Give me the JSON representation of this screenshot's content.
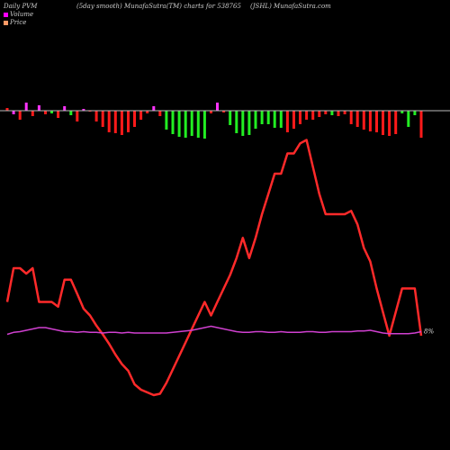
{
  "header": {
    "left": "Daily PVM",
    "middle": "(5day smooth) MunafaSutra(TM) charts for 538765",
    "right": "(JSHL) MunafaSutra.com"
  },
  "legend": [
    {
      "label": "Volume",
      "color": "#ff00ff"
    },
    {
      "label": "Price",
      "color": "#ff9a66"
    }
  ],
  "chart_data": {
    "type": "line",
    "x": [
      1,
      2,
      3,
      4,
      5,
      6,
      7,
      8,
      9,
      10,
      11,
      12,
      13,
      14,
      15,
      16,
      17,
      18,
      19,
      20,
      21,
      22,
      23,
      24,
      25,
      26,
      27,
      28,
      29,
      30,
      31,
      32,
      33,
      34,
      35,
      36,
      37,
      38,
      39,
      40,
      41,
      42,
      43,
      44,
      45,
      46,
      47,
      48,
      49,
      50,
      51,
      52,
      53,
      54,
      55,
      56,
      57,
      58,
      59,
      60,
      61,
      62,
      63,
      64,
      65,
      66
    ],
    "volume_bars": {
      "baseline_label": "",
      "values": [
        3,
        -4,
        -10,
        9,
        -6,
        6,
        -4,
        -3,
        -8,
        5,
        -5,
        -12,
        2,
        -1,
        -12,
        -18,
        -24,
        -25,
        -27,
        -24,
        -18,
        -10,
        -3,
        5,
        -6,
        -21,
        -26,
        -29,
        -30,
        -28,
        -30,
        -31,
        -3,
        9,
        -2,
        -16,
        -25,
        -28,
        -27,
        -20,
        -15,
        -15,
        -19,
        -19,
        -24,
        -20,
        -15,
        -10,
        -10,
        -7,
        -4,
        -5,
        -6,
        -4,
        -15,
        -18,
        -21,
        -23,
        -24,
        -27,
        -28,
        -26,
        -3,
        -18,
        -5,
        -30
      ],
      "colors": [
        "red",
        "magenta",
        "red",
        "magenta",
        "red",
        "magenta",
        "red",
        "green",
        "red",
        "magenta",
        "green",
        "red",
        "magenta",
        "red",
        "red",
        "red",
        "red",
        "red",
        "red",
        "red",
        "red",
        "red",
        "red",
        "magenta",
        "red",
        "green",
        "green",
        "green",
        "green",
        "green",
        "green",
        "green",
        "red",
        "magenta",
        "red",
        "green",
        "green",
        "green",
        "green",
        "green",
        "green",
        "green",
        "green",
        "green",
        "red",
        "red",
        "red",
        "red",
        "red",
        "red",
        "red",
        "green",
        "red",
        "red",
        "red",
        "red",
        "red",
        "red",
        "red",
        "red",
        "red",
        "red",
        "green",
        "green",
        "green",
        "red"
      ]
    },
    "series": [
      {
        "values": [
          50,
          100,
          100,
          92,
          100,
          50,
          50,
          50,
          43,
          83,
          83,
          62,
          40,
          30,
          15,
          2,
          -12,
          -28,
          -42,
          -52,
          -72,
          -80,
          -84,
          -88,
          -86,
          -70,
          -50,
          -30,
          -10,
          10,
          30,
          50,
          30,
          50,
          70,
          90,
          115,
          145,
          115,
          145,
          180,
          210,
          240,
          240,
          270,
          270,
          285,
          290,
          250,
          210,
          180,
          180,
          180,
          180,
          185,
          165,
          130,
          110,
          70,
          35,
          0,
          35,
          70,
          70,
          70,
          0
        ],
        "color": "#ff2a2a"
      },
      {
        "values": [
          2,
          5,
          6,
          8,
          10,
          12,
          12,
          10,
          8,
          6,
          6,
          5,
          6,
          5,
          5,
          4,
          5,
          5,
          4,
          5,
          4,
          4,
          4,
          4,
          4,
          4,
          5,
          6,
          7,
          8,
          10,
          12,
          14,
          12,
          10,
          8,
          6,
          5,
          5,
          6,
          6,
          5,
          5,
          6,
          5,
          5,
          5,
          6,
          6,
          5,
          5,
          6,
          6,
          6,
          6,
          7,
          7,
          8,
          6,
          4,
          3,
          3,
          3,
          3,
          4,
          6
        ],
        "color": "#d040d0"
      }
    ],
    "annotations": [
      {
        "text": "8%",
        "series": 1,
        "x": 66
      }
    ],
    "grid": false,
    "legend_position": "top-left"
  }
}
